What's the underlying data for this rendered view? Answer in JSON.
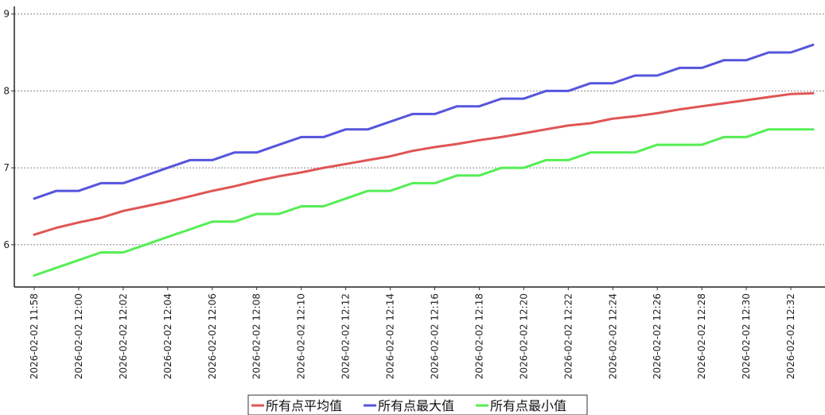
{
  "chart_data": {
    "type": "line",
    "title": "",
    "xlabel": "",
    "ylabel": "",
    "ylim": [
      5.45,
      9.1
    ],
    "yticks": [
      6,
      7,
      8,
      9
    ],
    "grid": "horizontal-dashed",
    "legend_position": "bottom-center",
    "x_tick_labels": [
      "2026-02-02 11:58",
      "2026-02-02 12:00",
      "2026-02-02 12:02",
      "2026-02-02 12:04",
      "2026-02-02 12:06",
      "2026-02-02 12:08",
      "2026-02-02 12:10",
      "2026-02-02 12:12",
      "2026-02-02 12:14",
      "2026-02-02 12:16",
      "2026-02-02 12:18",
      "2026-02-02 12:20",
      "2026-02-02 12:22",
      "2026-02-02 12:24",
      "2026-02-02 12:26",
      "2026-02-02 12:28",
      "2026-02-02 12:30",
      "2026-02-02 12:32"
    ],
    "x": [
      "2026-02-02 11:58",
      "2026-02-02 11:59",
      "2026-02-02 12:00",
      "2026-02-02 12:01",
      "2026-02-02 12:02",
      "2026-02-02 12:03",
      "2026-02-02 12:04",
      "2026-02-02 12:05",
      "2026-02-02 12:06",
      "2026-02-02 12:07",
      "2026-02-02 12:08",
      "2026-02-02 12:09",
      "2026-02-02 12:10",
      "2026-02-02 12:11",
      "2026-02-02 12:12",
      "2026-02-02 12:13",
      "2026-02-02 12:14",
      "2026-02-02 12:15",
      "2026-02-02 12:16",
      "2026-02-02 12:17",
      "2026-02-02 12:18",
      "2026-02-02 12:19",
      "2026-02-02 12:20",
      "2026-02-02 12:21",
      "2026-02-02 12:22",
      "2026-02-02 12:23",
      "2026-02-02 12:24",
      "2026-02-02 12:25",
      "2026-02-02 12:26",
      "2026-02-02 12:27",
      "2026-02-02 12:28",
      "2026-02-02 12:29",
      "2026-02-02 12:30",
      "2026-02-02 12:31",
      "2026-02-02 12:32",
      "2026-02-02 12:33"
    ],
    "series": [
      {
        "name": "所有点平均值",
        "color": "#e05555",
        "values": [
          6.13,
          6.22,
          6.29,
          6.35,
          6.44,
          6.5,
          6.56,
          6.63,
          6.7,
          6.76,
          6.83,
          6.89,
          6.94,
          7.0,
          7.05,
          7.1,
          7.15,
          7.22,
          7.27,
          7.31,
          7.36,
          7.4,
          7.45,
          7.5,
          7.55,
          7.58,
          7.64,
          7.67,
          7.71,
          7.76,
          7.8,
          7.84,
          7.88,
          7.92,
          7.96,
          7.97
        ]
      },
      {
        "name": "所有点最大值",
        "color": "#5555dd",
        "values": [
          6.6,
          6.7,
          6.7,
          6.8,
          6.8,
          6.9,
          7.0,
          7.1,
          7.1,
          7.2,
          7.2,
          7.3,
          7.4,
          7.4,
          7.5,
          7.5,
          7.6,
          7.7,
          7.7,
          7.8,
          7.8,
          7.9,
          7.9,
          8.0,
          8.0,
          8.1,
          8.1,
          8.2,
          8.2,
          8.3,
          8.3,
          8.4,
          8.4,
          8.5,
          8.5,
          8.6
        ]
      },
      {
        "name": "所有点最小值",
        "color": "#55ee55",
        "values": [
          5.6,
          5.7,
          5.8,
          5.9,
          5.9,
          6.0,
          6.1,
          6.2,
          6.3,
          6.3,
          6.4,
          6.4,
          6.5,
          6.5,
          6.6,
          6.7,
          6.7,
          6.8,
          6.8,
          6.9,
          6.9,
          7.0,
          7.0,
          7.1,
          7.1,
          7.2,
          7.2,
          7.2,
          7.3,
          7.3,
          7.3,
          7.4,
          7.4,
          7.5,
          7.5,
          7.5
        ]
      }
    ]
  }
}
